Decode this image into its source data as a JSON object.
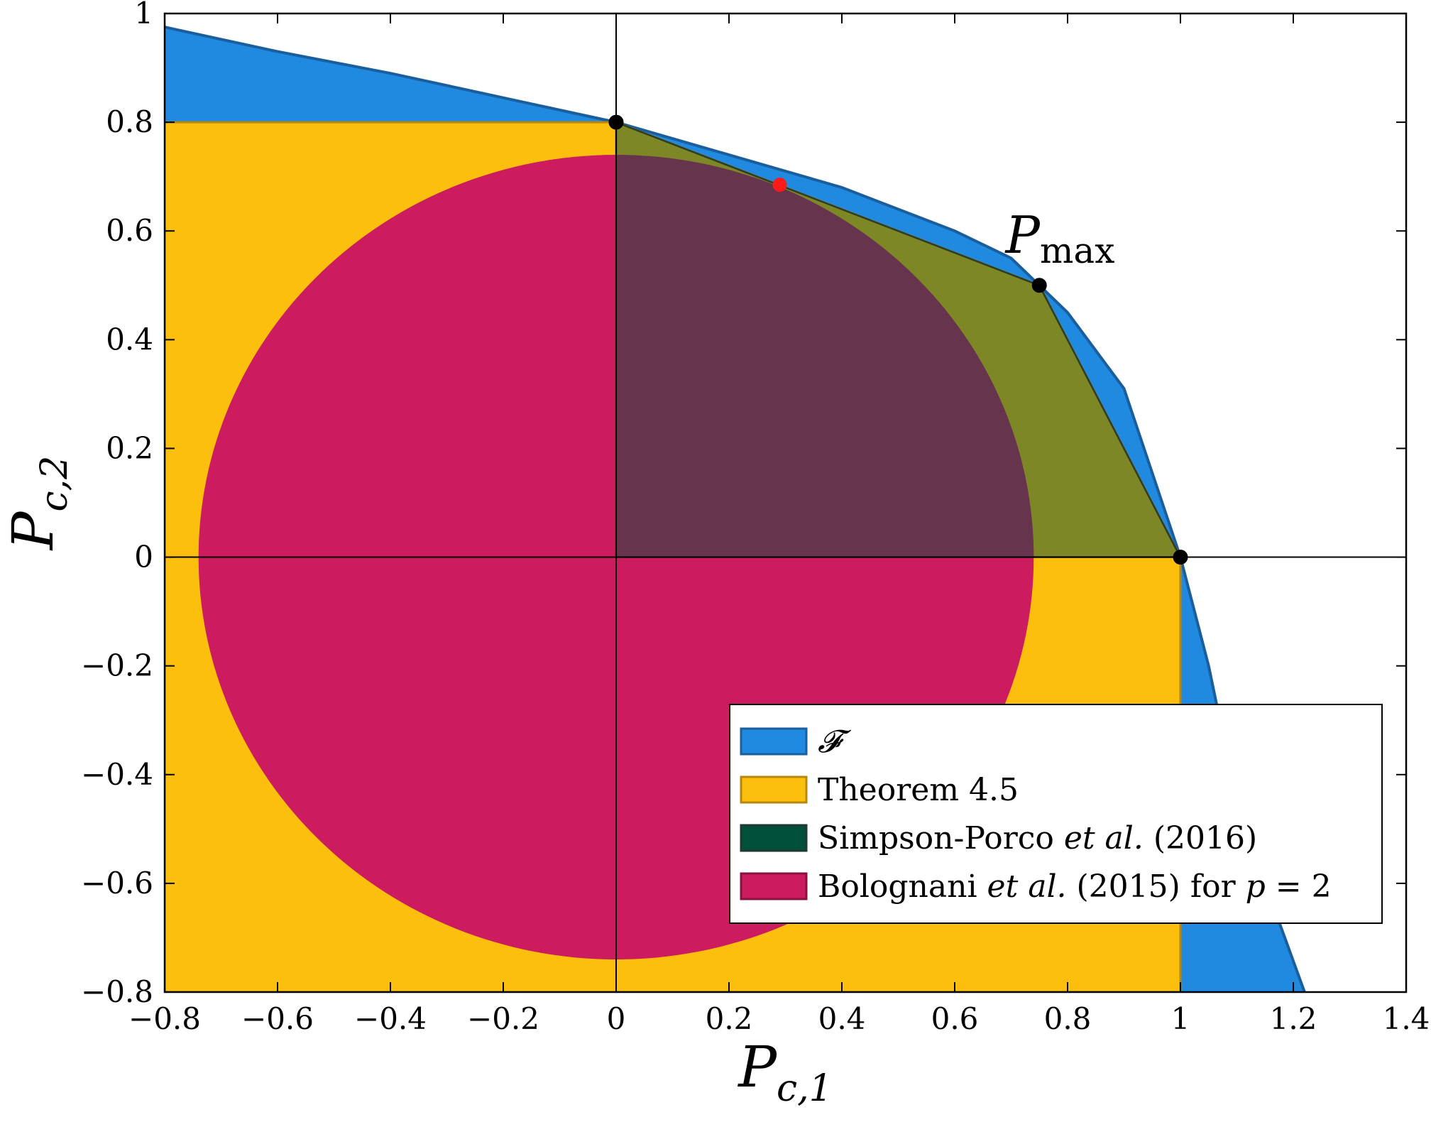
{
  "chart_data": {
    "type": "area",
    "xlabel": {
      "main": "P",
      "sub": "c,1"
    },
    "ylabel": {
      "main": "P",
      "sub": "c,2"
    },
    "xlim": [
      -0.8,
      1.4
    ],
    "ylim": [
      -0.8,
      1.0
    ],
    "xticks": [
      -0.8,
      -0.6,
      -0.4,
      -0.2,
      0,
      0.2,
      0.4,
      0.6,
      0.8,
      1,
      1.2,
      1.4
    ],
    "yticks": [
      -0.8,
      -0.6,
      -0.4,
      -0.2,
      0,
      0.2,
      0.4,
      0.6,
      0.8,
      1
    ],
    "xtick_labels": [
      "−0.8",
      "−0.6",
      "−0.4",
      "−0.2",
      "0",
      "0.2",
      "0.4",
      "0.6",
      "0.8",
      "1",
      "1.2",
      "1.4"
    ],
    "ytick_labels": [
      "−0.8",
      "−0.6",
      "−0.4",
      "−0.2",
      "0",
      "0.2",
      "0.4",
      "0.6",
      "0.8",
      "1"
    ],
    "grid": false,
    "legend_position": "bottom-right",
    "series": [
      {
        "name": "F",
        "legend_label": "𝓕",
        "color": "#1f8ae0",
        "stroke": "#1a5e9e",
        "boundary": [
          [
            -0.8,
            0.975
          ],
          [
            -0.6,
            0.93
          ],
          [
            -0.4,
            0.89
          ],
          [
            -0.2,
            0.845
          ],
          [
            0,
            0.8
          ],
          [
            0.2,
            0.74
          ],
          [
            0.4,
            0.68
          ],
          [
            0.6,
            0.6
          ],
          [
            0.7,
            0.55
          ],
          [
            0.75,
            0.5
          ],
          [
            0.8,
            0.45
          ],
          [
            0.9,
            0.31
          ],
          [
            1.0,
            0.0
          ],
          [
            1.05,
            -0.2
          ],
          [
            1.1,
            -0.45
          ],
          [
            1.15,
            -0.6
          ],
          [
            1.22,
            -0.8
          ]
        ]
      },
      {
        "name": "Theorem 4.5",
        "legend_label": "Theorem 4.5",
        "color": "#fcbf0e",
        "stroke": "#b8860b",
        "polygon": [
          [
            -0.8,
            0.8
          ],
          [
            0,
            0.8
          ],
          [
            0.75,
            0.5
          ],
          [
            1.0,
            0.0
          ],
          [
            1.0,
            -0.8
          ],
          [
            -0.8,
            -0.8
          ]
        ]
      },
      {
        "name": "Simpson-Porco et al. (2016)",
        "legend_parts": [
          {
            "text": "Simpson-Porco ",
            "italic": false
          },
          {
            "text": "et al.",
            "italic": true
          },
          {
            "text": " (2016)",
            "italic": false
          }
        ],
        "color": "#00503c",
        "polygon": [
          [
            0,
            0
          ],
          [
            0,
            0.8
          ],
          [
            0.75,
            0.5
          ],
          [
            1.0,
            0.0
          ]
        ]
      },
      {
        "name": "Bolognani et al. (2015) for p = 2",
        "legend_parts": [
          {
            "text": "Bolognani ",
            "italic": false
          },
          {
            "text": "et al.",
            "italic": true
          },
          {
            "text": " (2015) for ",
            "italic": false
          },
          {
            "text": "p",
            "italic": true
          },
          {
            "text": " = 2",
            "italic": false
          }
        ],
        "color": "#cc1b5e",
        "circle": {
          "center": [
            0,
            0
          ],
          "radius": 0.74
        }
      }
    ],
    "points": [
      {
        "x": 0,
        "y": 0.8,
        "color": "#000000"
      },
      {
        "x": 0.75,
        "y": 0.5,
        "color": "#000000"
      },
      {
        "x": 1.0,
        "y": 0.0,
        "color": "#000000"
      },
      {
        "x": 0.29,
        "y": 0.685,
        "color": "#ff1a1a"
      }
    ],
    "annotations": [
      {
        "main": "P",
        "sub": "max",
        "x": 0.69,
        "y": 0.56
      }
    ]
  }
}
